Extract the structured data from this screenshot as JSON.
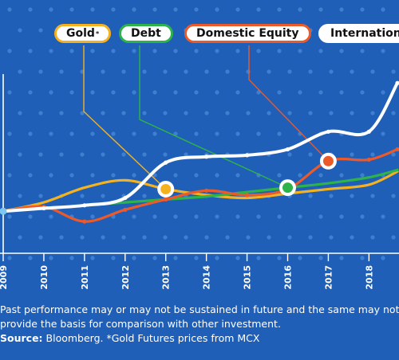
{
  "colors": {
    "background": "#1f5fb8",
    "dot": "#3f7fd0",
    "axis": "#ffffff",
    "gold": "#f5b21f",
    "debt": "#2eb34a",
    "equity": "#ec5a2a",
    "international": "#ffffff",
    "start_point": "#7ec8f0"
  },
  "legend": {
    "gold": "Gold",
    "gold_mark": "*",
    "debt": "Debt",
    "equity": "Domestic Equity",
    "international": "International"
  },
  "footer": {
    "line1": "Past performance may or may not be sustained in future and the same may not",
    "line2": "provide the basis for comparison with other investment.",
    "source_label": "Source:",
    "source_text": " Bloomberg.  *Gold Futures prices from MCX"
  },
  "chart_data": {
    "type": "line",
    "x": [
      "2009",
      "2010",
      "2011",
      "2012",
      "2013",
      "2014",
      "2015",
      "2016",
      "2017",
      "2018"
    ],
    "xlim": [
      2009,
      2018.7
    ],
    "ylim": [
      0,
      100
    ],
    "grid": false,
    "legend_position": "top",
    "series": [
      {
        "name": "Gold",
        "x": [
          2009,
          2010,
          2011,
          2012,
          2013,
          2014,
          2015,
          2016,
          2017,
          2018,
          2018.7
        ],
        "values": [
          8,
          14,
          24,
          29,
          23,
          19,
          17,
          20,
          23,
          26,
          35
        ]
      },
      {
        "name": "Debt",
        "x": [
          2009,
          2010,
          2011,
          2012,
          2013,
          2014,
          2015,
          2016,
          2017,
          2018,
          2018.7
        ],
        "values": [
          8,
          10,
          12,
          14,
          16,
          18,
          21,
          24,
          27,
          31,
          36
        ]
      },
      {
        "name": "Domestic Equity",
        "x": [
          2009,
          2010,
          2011,
          2012,
          2013,
          2014,
          2015,
          2016,
          2017,
          2018,
          2018.7
        ],
        "values": [
          8,
          11,
          1,
          9,
          16,
          22,
          19,
          23,
          42,
          43,
          50
        ]
      },
      {
        "name": "International",
        "x": [
          2009,
          2010,
          2011,
          2012,
          2013,
          2014,
          2015,
          2016,
          2017,
          2018,
          2018.7
        ],
        "values": [
          8,
          10,
          12,
          17,
          41,
          45,
          46,
          50,
          62,
          62,
          95
        ]
      }
    ],
    "highlights": [
      {
        "series": "Gold",
        "x": 2013,
        "value": 23
      },
      {
        "series": "Debt",
        "x": 2016,
        "value": 24
      },
      {
        "series": "Domestic Equity",
        "x": 2017,
        "value": 42
      }
    ]
  }
}
